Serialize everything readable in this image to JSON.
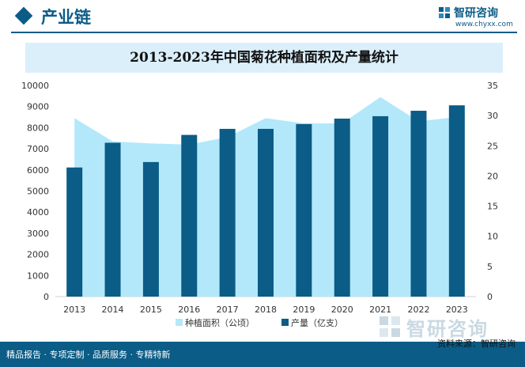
{
  "header": {
    "section_title": "产业链",
    "brand_name": "智研咨询",
    "brand_url": "www.chyxx.com"
  },
  "chart_data": {
    "type": "bar+area",
    "title": "2013-2023年中国菊花种植面积及产量统计",
    "categories": [
      "2013",
      "2014",
      "2015",
      "2016",
      "2017",
      "2018",
      "2019",
      "2020",
      "2021",
      "2022",
      "2023"
    ],
    "series": [
      {
        "name": "种植面积（公顷）",
        "type": "area",
        "axis": "left",
        "values": [
          8450,
          7350,
          7250,
          7200,
          7550,
          8450,
          8200,
          8200,
          9450,
          8300,
          8500
        ]
      },
      {
        "name": "产量（亿支）",
        "type": "bar",
        "axis": "right",
        "values": [
          21.4,
          25.5,
          22.3,
          26.8,
          27.8,
          27.8,
          28.6,
          29.5,
          29.9,
          30.8,
          31.7
        ]
      }
    ],
    "y_left": {
      "min": 0,
      "max": 10000,
      "ticks": [
        "0",
        "1000",
        "2000",
        "3000",
        "4000",
        "5000",
        "6000",
        "7000",
        "8000",
        "9000",
        "10000"
      ]
    },
    "y_right": {
      "min": 0,
      "max": 35,
      "ticks": [
        "0",
        "5",
        "10",
        "15",
        "20",
        "25",
        "30",
        "35"
      ]
    },
    "legend_position": "bottom",
    "colors": {
      "area": "#b3e8fb",
      "bar": "#0b5c86"
    }
  },
  "footer": {
    "left_text": "精品报告 · 专项定制 · 品质服务 · 专精特新",
    "source_text": "资料来源：智研咨询",
    "brand_name": "智研咨询"
  }
}
